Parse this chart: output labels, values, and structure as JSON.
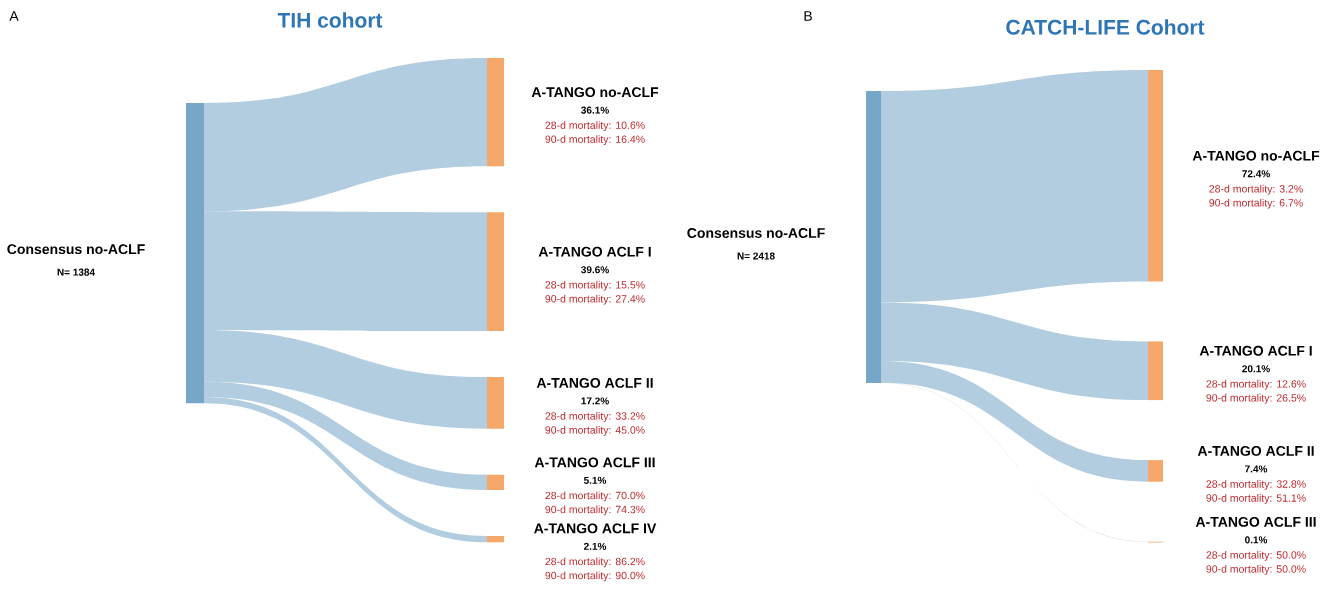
{
  "chart_data": [
    {
      "type": "other",
      "title": "TIH cohort",
      "categories": [
        "A-TANGO no-ACLF",
        "A-TANGO ACLF I",
        "A-TANGO ACLF II",
        "A-TANGO ACLF III",
        "A-TANGO ACLF IV"
      ],
      "values": [
        36.1,
        39.6,
        17.2,
        5.1,
        2.1
      ],
      "value_labels": [
        "36.1%",
        "39.6%",
        "17.2%",
        "5.1%",
        "2.1%"
      ],
      "colors": [
        "#f5a86a",
        "#f5a86a",
        "#f5a86a",
        "#f5a86a",
        "#f5a86a"
      ],
      "annotations": [
        "A",
        "Consensus no-ACLF",
        "N= 1384",
        "28-d mortality: 10.6%",
        "90-d mortality: 16.4%",
        "28-d mortality: 15.5%",
        "90-d mortality: 27.4%",
        "28-d mortality: 33.2%",
        "90-d mortality: 45.0%",
        "28-d mortality: 70.0%",
        "90-d mortality: 74.3%",
        "28-d mortality: 86.2%",
        "90-d mortality: 90.0%"
      ]
    },
    {
      "type": "other",
      "title": "CATCH-LIFE Cohort",
      "categories": [
        "A-TANGO no-ACLF",
        "A-TANGO ACLF I",
        "A-TANGO ACLF II",
        "A-TANGO ACLF III"
      ],
      "values": [
        72.4,
        20.1,
        7.4,
        0.1
      ],
      "value_labels": [
        "72.4%",
        "20.1%",
        "7.4%",
        "0.1%"
      ],
      "colors": [
        "#f5a86a",
        "#f5a86a",
        "#f5a86a",
        "#f5a86a"
      ],
      "annotations": [
        "B",
        "Consensus no-ACLF",
        "N= 2418",
        "28-d mortality: 3.2%",
        "90-d mortality: 6.7%",
        "28-d mortality: 12.6%",
        "90-d mortality: 26.5%",
        "28-d mortality: 32.8%",
        "90-d mortality: 51.1%",
        "28-d mortality: 50.0%",
        "90-d mortality: 50.0%"
      ]
    }
  ]
}
